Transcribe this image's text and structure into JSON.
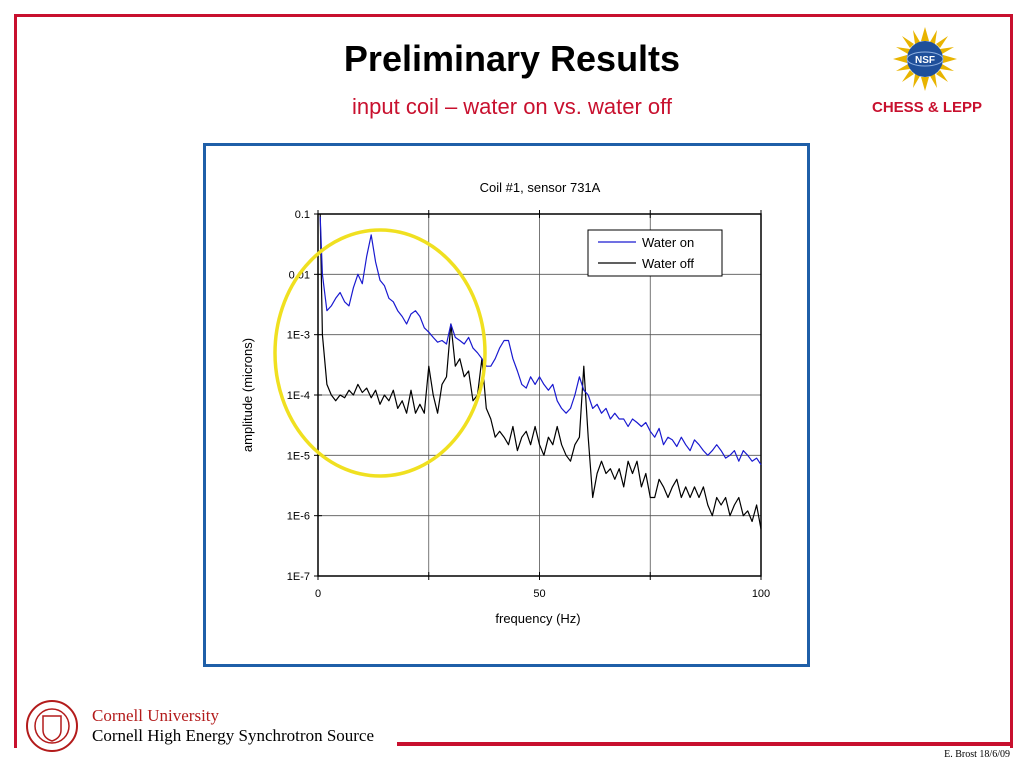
{
  "slide": {
    "title": "Preliminary Results",
    "subtitle": "input coil – water on vs. water off",
    "org_label": "CHESS & LEPP",
    "nsf_logo_text": "NSF",
    "cornell_name": "Cornell University",
    "cornell_source": "Cornell High Energy Synchrotron Source",
    "footer": "E. Brost 18/6/09",
    "accent_color": "#c8102e",
    "chart_border_color": "#1f5fa8",
    "highlight_color": "#f0e020"
  },
  "chart_data": {
    "type": "line",
    "title": "Coil #1, sensor 731A",
    "xlabel": "frequency (Hz)",
    "ylabel": "amplitude (microns)",
    "xlim": [
      0,
      100
    ],
    "ylim": [
      1e-07,
      0.1
    ],
    "yscale": "log",
    "x_ticks": [
      "0",
      "50",
      "100"
    ],
    "y_ticks": [
      "0.1",
      "0.01",
      "1E-3",
      "1E-4",
      "1E-5",
      "1E-6",
      "1E-7"
    ],
    "grid": true,
    "legend_position": "top-right",
    "series": [
      {
        "name": "Water on",
        "color": "#1a1ad0",
        "x": [
          0.5,
          1,
          2,
          3,
          4,
          5,
          6,
          7,
          8,
          9,
          10,
          11,
          12,
          13,
          14,
          15,
          16,
          17,
          18,
          19,
          20,
          21,
          22,
          23,
          24,
          25,
          26,
          27,
          28,
          29,
          30,
          31,
          32,
          33,
          34,
          35,
          36,
          37,
          38,
          39,
          40,
          41,
          42,
          43,
          44,
          45,
          46,
          47,
          48,
          49,
          50,
          51,
          52,
          53,
          54,
          55,
          56,
          57,
          58,
          59,
          60,
          61,
          62,
          63,
          64,
          65,
          66,
          67,
          68,
          69,
          70,
          71,
          72,
          73,
          74,
          75,
          76,
          77,
          78,
          79,
          80,
          81,
          82,
          83,
          84,
          85,
          86,
          87,
          88,
          89,
          90,
          91,
          92,
          93,
          94,
          95,
          96,
          97,
          98,
          99,
          100
        ],
        "y": [
          0.09,
          0.01,
          0.0025,
          0.003,
          0.004,
          0.005,
          0.0035,
          0.003,
          0.006,
          0.01,
          0.007,
          0.02,
          0.045,
          0.016,
          0.008,
          0.0065,
          0.004,
          0.0035,
          0.0025,
          0.002,
          0.0015,
          0.0022,
          0.0025,
          0.002,
          0.0013,
          0.0011,
          0.0009,
          0.00075,
          0.0008,
          0.0007,
          0.0015,
          0.0009,
          0.0008,
          0.0007,
          0.0009,
          0.0006,
          0.0005,
          0.0004,
          0.0003,
          0.0003,
          0.0004,
          0.0006,
          0.0008,
          0.0008,
          0.0004,
          0.00025,
          0.00015,
          0.00013,
          0.0002,
          0.00015,
          0.0002,
          0.00015,
          0.00012,
          0.00015,
          8e-05,
          6e-05,
          5e-05,
          6e-05,
          0.0001,
          0.0002,
          0.00012,
          0.0001,
          6e-05,
          7e-05,
          5e-05,
          6e-05,
          4e-05,
          5e-05,
          4e-05,
          4e-05,
          3e-05,
          4e-05,
          3.5e-05,
          3e-05,
          3.5e-05,
          2.5e-05,
          2e-05,
          2.8e-05,
          1.5e-05,
          2e-05,
          1.8e-05,
          1.4e-05,
          2e-05,
          1.5e-05,
          1.2e-05,
          1.8e-05,
          1.5e-05,
          1.2e-05,
          1e-05,
          1.2e-05,
          1.5e-05,
          1.2e-05,
          9e-06,
          1e-05,
          1.2e-05,
          8e-06,
          1.2e-05,
          1e-05,
          8e-06,
          9e-06,
          7e-06
        ]
      },
      {
        "name": "Water off",
        "color": "#000000",
        "x": [
          0.5,
          1,
          2,
          3,
          4,
          5,
          6,
          7,
          8,
          9,
          10,
          11,
          12,
          13,
          14,
          15,
          16,
          17,
          18,
          19,
          20,
          21,
          22,
          23,
          24,
          25,
          26,
          27,
          28,
          29,
          30,
          31,
          32,
          33,
          34,
          35,
          36,
          37,
          38,
          39,
          40,
          41,
          42,
          43,
          44,
          45,
          46,
          47,
          48,
          49,
          50,
          51,
          52,
          53,
          54,
          55,
          56,
          57,
          58,
          59,
          60,
          61,
          62,
          63,
          64,
          65,
          66,
          67,
          68,
          69,
          70,
          71,
          72,
          73,
          74,
          75,
          76,
          77,
          78,
          79,
          80,
          81,
          82,
          83,
          84,
          85,
          86,
          87,
          88,
          89,
          90,
          91,
          92,
          93,
          94,
          95,
          96,
          97,
          98,
          99,
          100
        ],
        "y": [
          0.1,
          0.001,
          0.00015,
          0.0001,
          8e-05,
          0.0001,
          9e-05,
          0.00012,
          0.0001,
          0.00015,
          0.00011,
          0.00013,
          9e-05,
          0.00012,
          7e-05,
          0.0001,
          8e-05,
          0.00012,
          6e-05,
          8e-05,
          5e-05,
          0.00012,
          5e-05,
          7e-05,
          5e-05,
          0.0003,
          0.0001,
          5e-05,
          0.00015,
          0.0002,
          0.0015,
          0.0003,
          0.0004,
          0.0002,
          0.00025,
          8e-05,
          0.0001,
          0.0004,
          6e-05,
          4e-05,
          2e-05,
          2.5e-05,
          2e-05,
          1.5e-05,
          3e-05,
          1.2e-05,
          2e-05,
          2.5e-05,
          1.5e-05,
          3e-05,
          1.5e-05,
          1e-05,
          2e-05,
          1.5e-05,
          3e-05,
          1.5e-05,
          1e-05,
          8e-06,
          1.5e-05,
          2e-05,
          0.0003,
          2e-05,
          2e-06,
          5e-06,
          8e-06,
          5e-06,
          6e-06,
          4e-06,
          6e-06,
          3e-06,
          8e-06,
          5e-06,
          8e-06,
          3e-06,
          5e-06,
          2e-06,
          2e-06,
          4e-06,
          3e-06,
          2e-06,
          3e-06,
          4e-06,
          2e-06,
          3e-06,
          2e-06,
          3e-06,
          2e-06,
          3e-06,
          1.5e-06,
          1e-06,
          2e-06,
          1.5e-06,
          2e-06,
          1e-06,
          1.5e-06,
          2e-06,
          1e-06,
          1.2e-06,
          8e-07,
          1.5e-06,
          6e-07
        ]
      }
    ]
  }
}
